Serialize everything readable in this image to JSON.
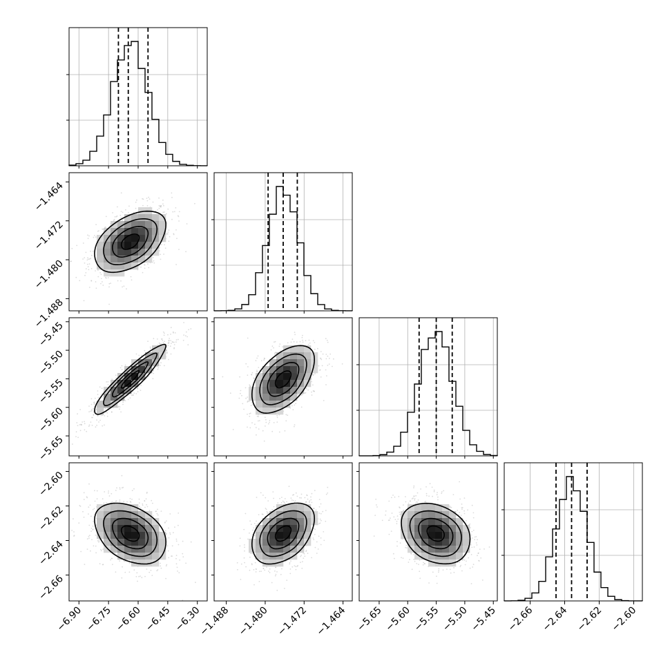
{
  "chart_data": {
    "type": "corner",
    "parameters": [
      {
        "index": 0,
        "range": [
          -6.95,
          -6.25
        ],
        "ticks": [
          -6.9,
          -6.75,
          -6.6,
          -6.45,
          -6.3
        ],
        "tick_labels": [
          "−6.90",
          "−6.75",
          "−6.60",
          "−6.45",
          "−6.30"
        ],
        "quantiles": [
          -6.7,
          -6.65,
          -6.55
        ],
        "mean": -6.64,
        "sd": 0.09
      },
      {
        "index": 1,
        "range": [
          -1.4905,
          -1.4621
        ],
        "ticks": [
          -1.488,
          -1.48,
          -1.472,
          -1.464
        ],
        "tick_labels": [
          "−1.488",
          "−1.480",
          "−1.472",
          "−1.464"
        ],
        "quantiles": [
          -1.4794,
          -1.4763,
          -1.4734
        ],
        "mean": -1.4763,
        "sd": 0.0032
      },
      {
        "index": 2,
        "range": [
          -5.685,
          -5.443
        ],
        "ticks": [
          -5.65,
          -5.6,
          -5.55,
          -5.5,
          -5.45
        ],
        "tick_labels": [
          "−5.65",
          "−5.60",
          "−5.55",
          "−5.50",
          "−5.45"
        ],
        "quantiles": [
          -5.58,
          -5.55,
          -5.522
        ],
        "mean": -5.551,
        "sd": 0.03
      },
      {
        "index": 3,
        "range": [
          -2.675,
          -2.595
        ],
        "ticks": [
          -2.66,
          -2.64,
          -2.62,
          -2.6
        ],
        "tick_labels": [
          "−2.66",
          "−2.64",
          "−2.62",
          "−2.60"
        ],
        "quantiles": [
          -2.645,
          -2.636,
          -2.627
        ],
        "mean": -2.636,
        "sd": 0.009
      }
    ],
    "correlations": [
      {
        "pair": [
          0,
          1
        ],
        "rho": 0.45
      },
      {
        "pair": [
          0,
          2
        ],
        "rho": 0.92
      },
      {
        "pair": [
          1,
          2
        ],
        "rho": 0.5
      },
      {
        "pair": [
          0,
          3
        ],
        "rho": -0.35
      },
      {
        "pair": [
          1,
          3
        ],
        "rho": 0.4
      },
      {
        "pair": [
          2,
          3
        ],
        "rho": -0.25
      }
    ],
    "quantile_line_style": "dashed",
    "grid": true,
    "colors": {
      "lines": "#000000",
      "grid": "#b0b0b0",
      "points": "#bdbdbd"
    }
  }
}
